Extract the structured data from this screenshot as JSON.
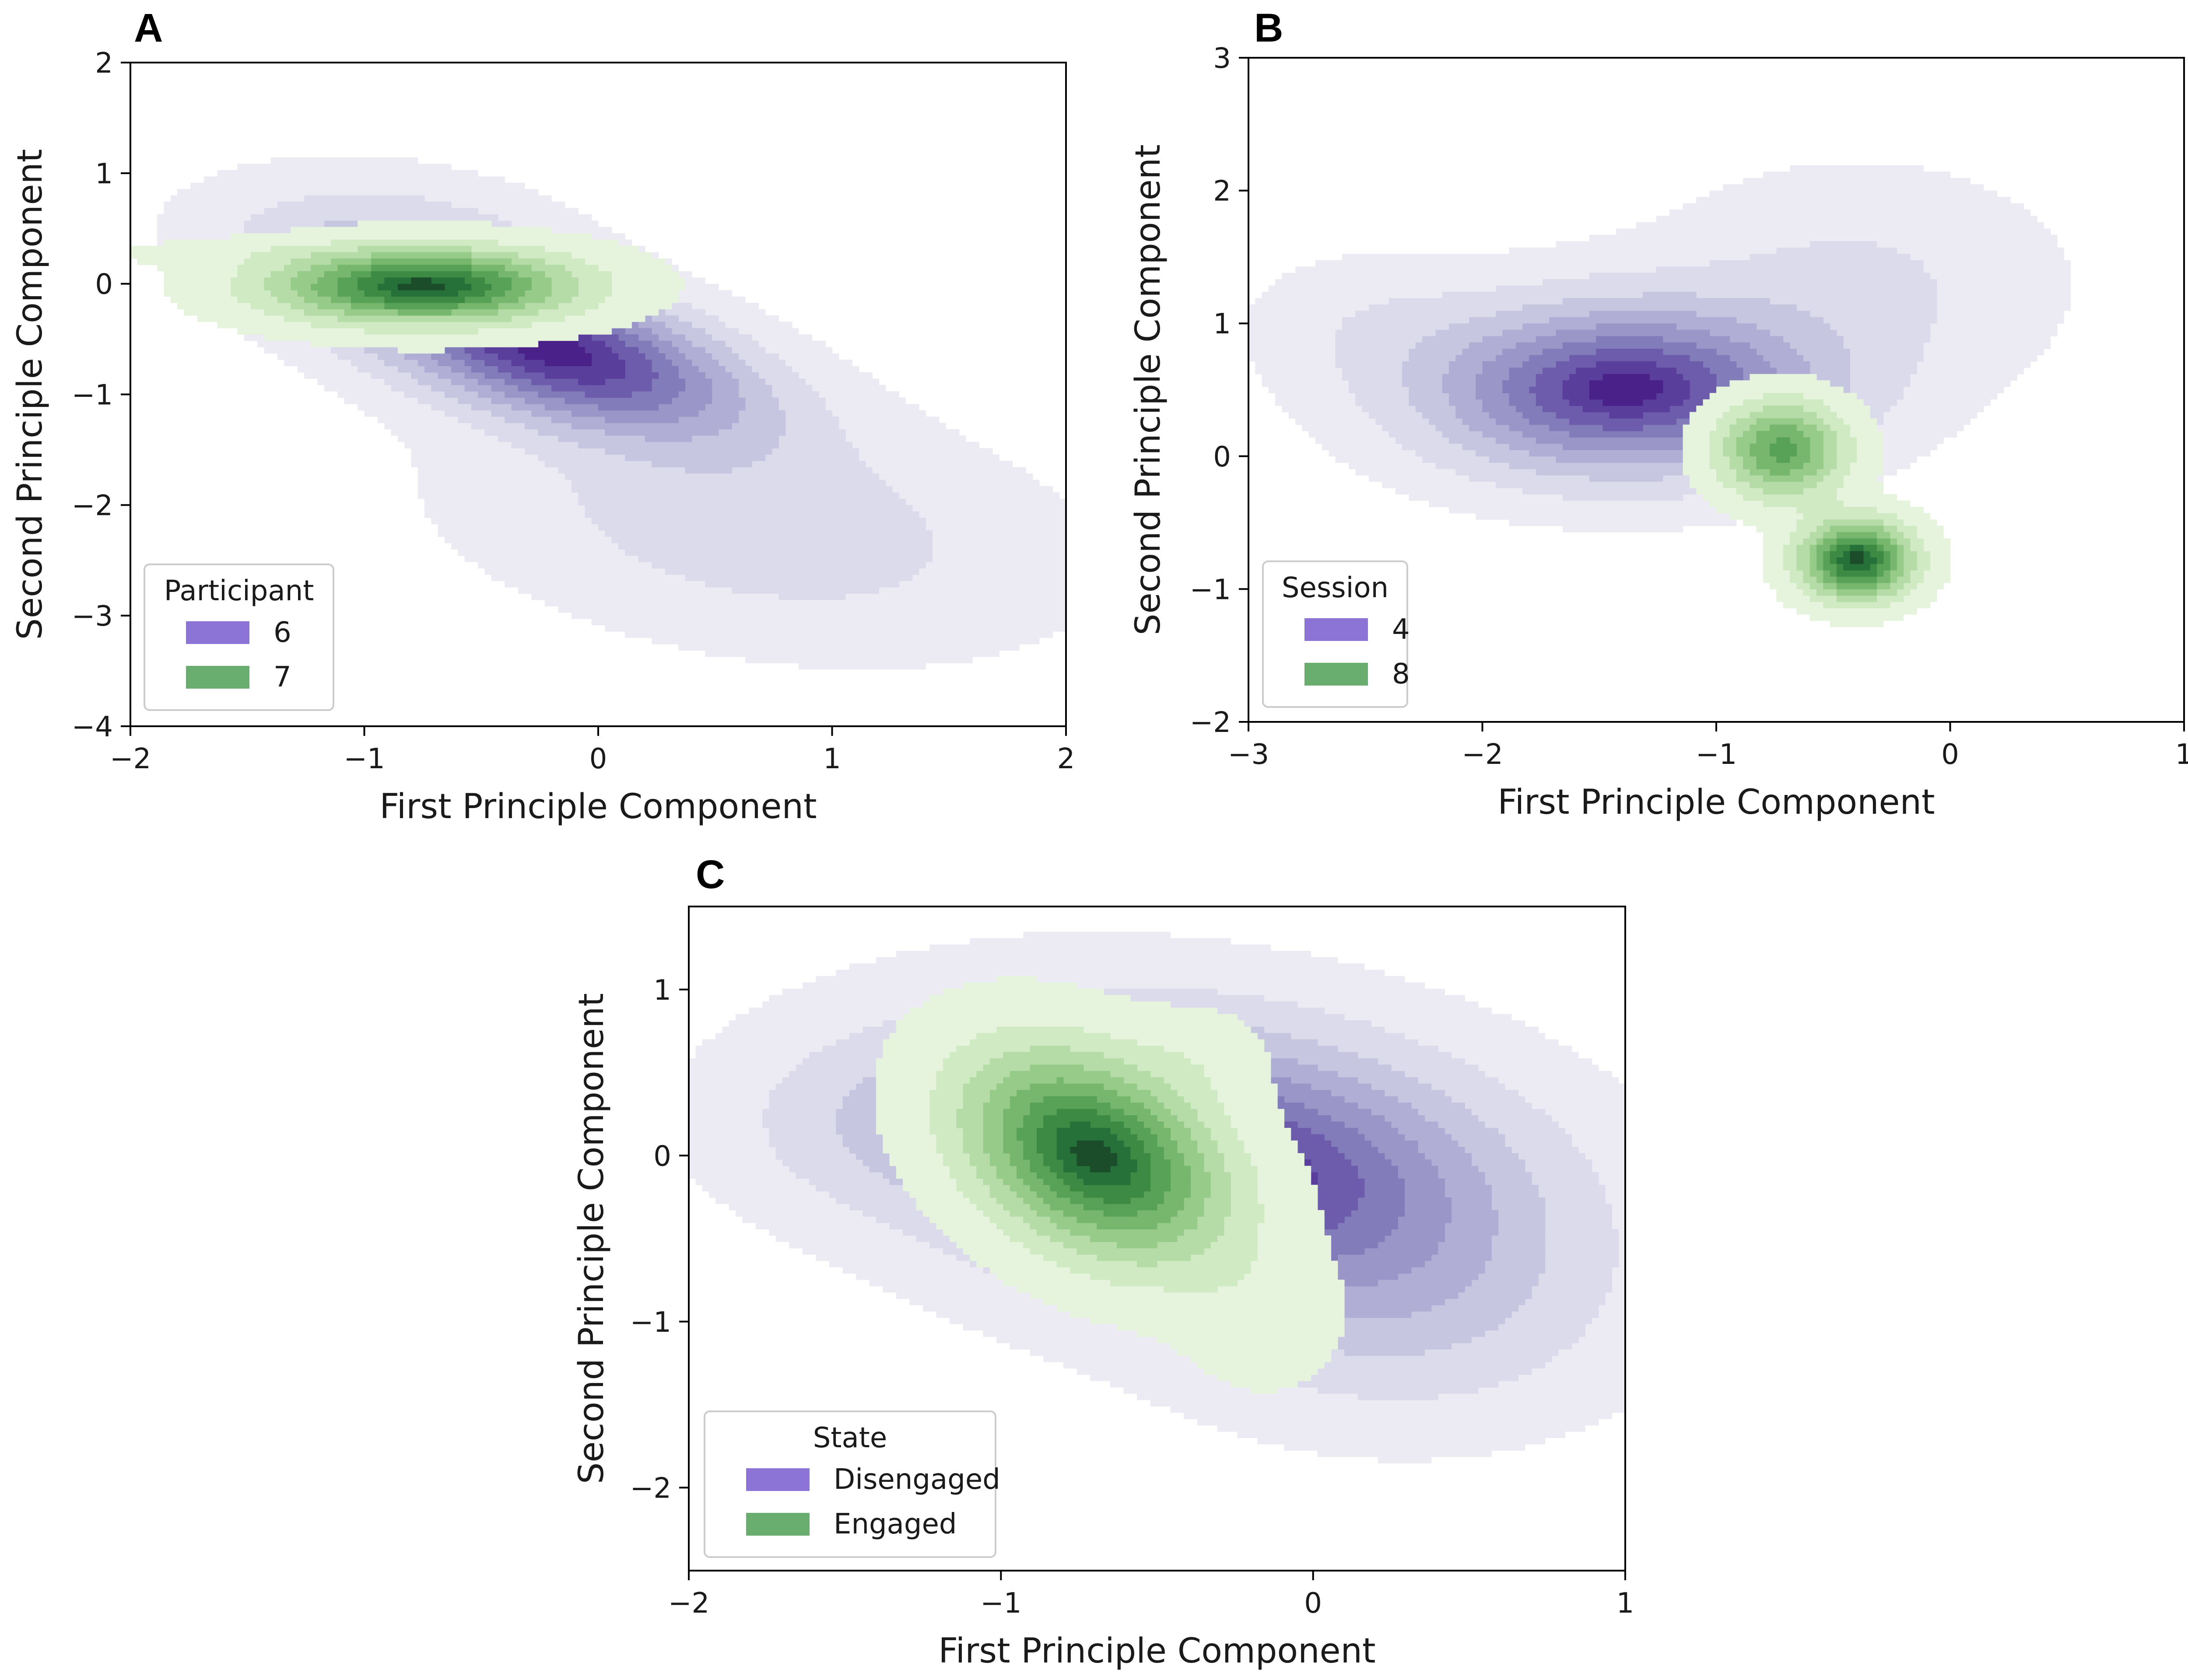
{
  "colors": {
    "series_a": "#8b74d6",
    "series_b": "#6aae6f",
    "purple_levels": [
      "#ecebf4",
      "#dcdbec",
      "#c7c6e1",
      "#b0aed4",
      "#9a97c8",
      "#837cba",
      "#6c5cab",
      "#5a3e9c",
      "#4a2188"
    ],
    "green_levels": [
      "#e6f4de",
      "#d0eac4",
      "#b5dba7",
      "#97cb89",
      "#77b76d",
      "#58a257",
      "#3d8a45",
      "#26703a",
      "#1c4d2a"
    ]
  },
  "chart_data": [
    {
      "id": "A",
      "panel": "A",
      "type": "kde-contour",
      "xlabel": "First Principle Component",
      "ylabel": "Second Principle Component",
      "xlim": [
        -2,
        2
      ],
      "ylim": [
        -4,
        2
      ],
      "xticks": [
        -2,
        -1,
        0,
        1,
        2
      ],
      "yticks": [
        -4,
        -3,
        -2,
        -1,
        0,
        1,
        2
      ],
      "xtick_labels": [
        "−2",
        "−1",
        "0",
        "1",
        "2"
      ],
      "ytick_labels": [
        "−4",
        "−3",
        "−2",
        "−1",
        "0",
        "1",
        "2"
      ],
      "legend": {
        "title": "Participant",
        "placement": "lower-left",
        "entries": [
          "6",
          "7"
        ]
      },
      "series": [
        {
          "name": "6",
          "palette": "purple",
          "components": [
            {
              "cx": -0.2,
              "cy": -0.6,
              "sx": 0.55,
              "sy": 0.5,
              "rho": -0.55,
              "w": 1.0
            },
            {
              "cx": 0.7,
              "cy": -2.2,
              "sx": 0.8,
              "sy": 0.7,
              "rho": -0.3,
              "w": 0.22
            },
            {
              "cx": -0.9,
              "cy": 0.3,
              "sx": 0.5,
              "sy": 0.45,
              "rho": -0.2,
              "w": 0.25
            }
          ],
          "levels": [
            0.04,
            0.14,
            0.25,
            0.37,
            0.49,
            0.61,
            0.73,
            0.85,
            0.95
          ]
        },
        {
          "name": "7",
          "palette": "green",
          "components": [
            {
              "cx": -0.75,
              "cy": -0.02,
              "sx": 0.42,
              "sy": 0.22,
              "rho": 0.0,
              "w": 1.0
            },
            {
              "cx": -1.55,
              "cy": 0.28,
              "sx": 0.4,
              "sy": 0.08,
              "rho": 0.0,
              "w": 0.06
            }
          ],
          "levels": [
            0.03,
            0.15,
            0.28,
            0.41,
            0.54,
            0.67,
            0.79,
            0.9,
            0.97
          ]
        }
      ]
    },
    {
      "id": "B",
      "panel": "B",
      "type": "kde-contour",
      "xlabel": "First Principle Component",
      "ylabel": "Second Principle Component",
      "xlim": [
        -3,
        1
      ],
      "ylim": [
        -2,
        3
      ],
      "xticks": [
        -3,
        -2,
        -1,
        0,
        1
      ],
      "yticks": [
        -2,
        -1,
        0,
        1,
        2,
        3
      ],
      "xtick_labels": [
        "−3",
        "−2",
        "−1",
        "0",
        "1"
      ],
      "ytick_labels": [
        "−2",
        "−1",
        "0",
        "1",
        "2",
        "3"
      ],
      "legend": {
        "title": "Session",
        "placement": "lower-left",
        "entries": [
          "4",
          "8"
        ]
      },
      "series": [
        {
          "name": "4",
          "palette": "purple",
          "components": [
            {
              "cx": -1.4,
              "cy": 0.5,
              "sx": 0.55,
              "sy": 0.42,
              "rho": 0.0,
              "w": 1.0
            },
            {
              "cx": -0.4,
              "cy": 1.3,
              "sx": 0.55,
              "sy": 0.55,
              "rho": 0.0,
              "w": 0.16
            },
            {
              "cx": -2.5,
              "cy": 1.0,
              "sx": 0.35,
              "sy": 0.35,
              "rho": 0.0,
              "w": 0.1
            }
          ],
          "levels": [
            0.04,
            0.14,
            0.27,
            0.4,
            0.53,
            0.66,
            0.78,
            0.89,
            0.96
          ]
        },
        {
          "name": "8",
          "palette": "green",
          "components": [
            {
              "cx": -0.4,
              "cy": -0.78,
              "sx": 0.16,
              "sy": 0.2,
              "rho": 0.0,
              "w": 1.0
            },
            {
              "cx": -0.72,
              "cy": 0.05,
              "sx": 0.18,
              "sy": 0.24,
              "rho": 0.0,
              "w": 0.72
            }
          ],
          "levels": [
            0.04,
            0.16,
            0.29,
            0.42,
            0.55,
            0.68,
            0.8,
            0.9,
            0.97
          ]
        }
      ]
    },
    {
      "id": "C",
      "panel": "C",
      "type": "kde-contour",
      "xlabel": "First Principle Component",
      "ylabel": "Second Principle Component",
      "xlim": [
        -2,
        1
      ],
      "ylim": [
        -2.5,
        1.5
      ],
      "xticks": [
        -2,
        -1,
        0,
        1
      ],
      "yticks": [
        -2,
        -1,
        0,
        1
      ],
      "xtick_labels": [
        "−2",
        "−1",
        "0",
        "1"
      ],
      "ytick_labels": [
        "−2",
        "−1",
        "0",
        "1"
      ],
      "legend": {
        "title": "State",
        "placement": "lower-left",
        "entries": [
          "Disengaged",
          "Engaged"
        ]
      },
      "series": [
        {
          "name": "Disengaged",
          "palette": "purple",
          "components": [
            {
              "cx": -0.3,
              "cy": -0.05,
              "sx": 0.62,
              "sy": 0.55,
              "rho": -0.25,
              "w": 1.0
            },
            {
              "cx": 0.3,
              "cy": -1.0,
              "sx": 0.45,
              "sy": 0.45,
              "rho": 0.0,
              "w": 0.2
            },
            {
              "cx": -1.4,
              "cy": 0.2,
              "sx": 0.35,
              "sy": 0.35,
              "rho": 0.0,
              "w": 0.15
            }
          ],
          "levels": [
            0.04,
            0.15,
            0.28,
            0.41,
            0.54,
            0.67,
            0.79,
            0.9,
            0.97
          ]
        },
        {
          "name": "Engaged",
          "palette": "green",
          "components": [
            {
              "cx": -0.7,
              "cy": 0.0,
              "sx": 0.28,
              "sy": 0.42,
              "rho": -0.35,
              "w": 1.0
            },
            {
              "cx": -0.15,
              "cy": -1.0,
              "sx": 0.17,
              "sy": 0.3,
              "rho": 0.0,
              "w": 0.1
            },
            {
              "cx": -0.35,
              "cy": 0.6,
              "sx": 0.15,
              "sy": 0.2,
              "rho": 0.0,
              "w": 0.08
            }
          ],
          "levels": [
            0.04,
            0.17,
            0.3,
            0.43,
            0.56,
            0.69,
            0.8,
            0.9,
            0.97
          ]
        }
      ]
    }
  ]
}
